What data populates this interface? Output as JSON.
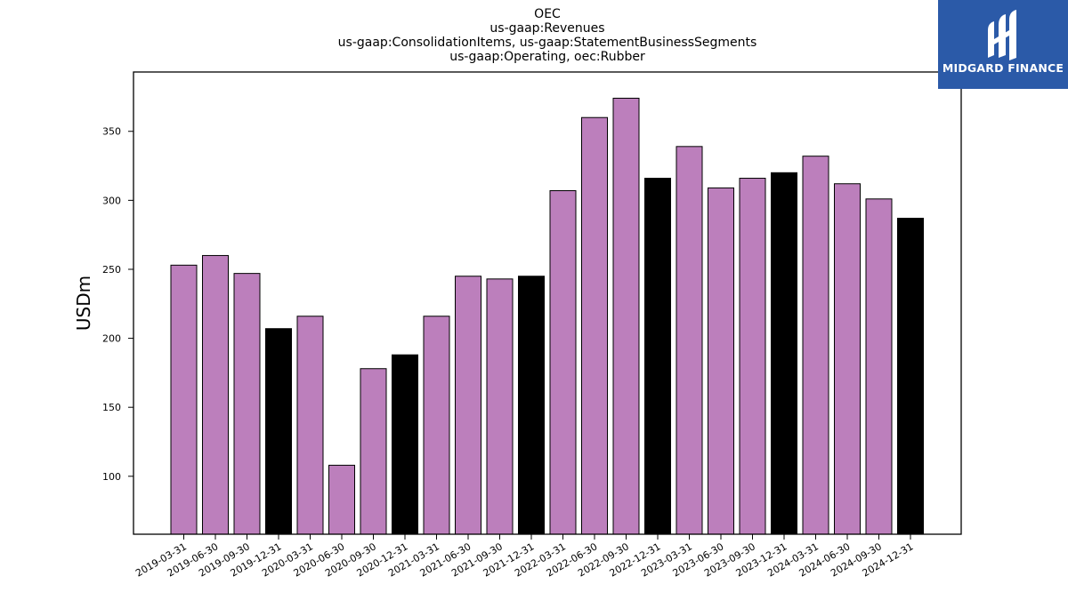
{
  "chart_data": {
    "type": "bar",
    "title": [
      "OEC",
      "us-gaap:Revenues",
      "us-gaap:ConsolidationItems, us-gaap:StatementBusinessSegments",
      "us-gaap:Operating, oec:Rubber"
    ],
    "ylabel": "USDm",
    "xlabel": "",
    "ylim": [
      58,
      393
    ],
    "yticks": [
      100,
      150,
      200,
      250,
      300,
      350
    ],
    "categories": [
      "2019-03-31",
      "2019-06-30",
      "2019-09-30",
      "2019-12-31",
      "2020-03-31",
      "2020-06-30",
      "2020-09-30",
      "2020-12-31",
      "2021-03-31",
      "2021-06-30",
      "2021-09-30",
      "2021-12-31",
      "2022-03-31",
      "2022-06-30",
      "2022-09-30",
      "2022-12-31",
      "2023-03-31",
      "2023-06-30",
      "2023-09-30",
      "2023-12-31",
      "2024-03-31",
      "2024-06-30",
      "2024-09-30",
      "2024-12-31"
    ],
    "values": [
      253,
      260,
      247,
      207,
      216,
      108,
      178,
      188,
      216,
      245,
      243,
      245,
      307,
      360,
      374,
      316,
      339,
      309,
      316,
      320,
      332,
      312,
      301,
      287
    ],
    "quarter_type": [
      "Q",
      "Q",
      "Q",
      "FY",
      "Q",
      "Q",
      "Q",
      "FY",
      "Q",
      "Q",
      "Q",
      "FY",
      "Q",
      "Q",
      "Q",
      "FY",
      "Q",
      "Q",
      "Q",
      "FY",
      "Q",
      "Q",
      "Q",
      "FY"
    ],
    "colors": {
      "Q": "#bc7fbc",
      "FY": "#000000",
      "edge": "#000000"
    },
    "grid": false
  },
  "logo": {
    "text": "MIDGARD FINANCE",
    "background": "#2b5aa8"
  }
}
